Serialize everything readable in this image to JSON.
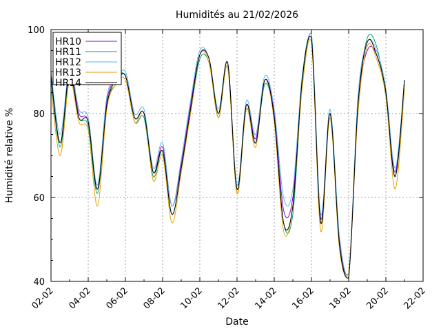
{
  "chart_data": {
    "type": "line",
    "title": "Humidités au 21/02/2026",
    "xlabel": "Date",
    "ylabel": "Humidité relative %",
    "xlim": [
      "2026-02-02",
      "2026-02-22"
    ],
    "ylim": [
      40,
      100
    ],
    "x_ticks": [
      "02-02",
      "04-02",
      "06-02",
      "08-02",
      "10-02",
      "12-02",
      "14-02",
      "16-02",
      "18-02",
      "20-02",
      "22-02"
    ],
    "y_ticks": [
      40,
      60,
      80,
      100
    ],
    "grid": true,
    "legend_position": "top-left",
    "x": [
      "2026-02-02 00:00",
      "2026-02-02 12:00",
      "2026-02-03 00:00",
      "2026-02-03 12:00",
      "2026-02-04 00:00",
      "2026-02-04 12:00",
      "2026-02-05 00:00",
      "2026-02-05 12:00",
      "2026-02-06 00:00",
      "2026-02-06 12:00",
      "2026-02-07 00:00",
      "2026-02-07 12:00",
      "2026-02-08 00:00",
      "2026-02-08 12:00",
      "2026-02-09 00:00",
      "2026-02-09 12:00",
      "2026-02-10 00:00",
      "2026-02-10 12:00",
      "2026-02-11 00:00",
      "2026-02-11 12:00",
      "2026-02-12 00:00",
      "2026-02-12 12:00",
      "2026-02-13 00:00",
      "2026-02-13 12:00",
      "2026-02-14 00:00",
      "2026-02-14 12:00",
      "2026-02-15 00:00",
      "2026-02-15 12:00",
      "2026-02-16 00:00",
      "2026-02-16 12:00",
      "2026-02-17 00:00",
      "2026-02-17 12:00",
      "2026-02-18 00:00",
      "2026-02-18 12:00",
      "2026-02-19 00:00",
      "2026-02-19 12:00",
      "2026-02-20 00:00",
      "2026-02-20 12:00",
      "2026-02-21 00:00"
    ],
    "series": [
      {
        "name": "HR10",
        "color": "#9400d3",
        "values": [
          89,
          73,
          90,
          80,
          78,
          62,
          83,
          88,
          89,
          79,
          80,
          66,
          72,
          58,
          68,
          82,
          94,
          93,
          80,
          92,
          62,
          82,
          74,
          88,
          80,
          57,
          60,
          88,
          98,
          55,
          80,
          50,
          42,
          82,
          95,
          94,
          85,
          66,
          88
        ]
      },
      {
        "name": "HR11",
        "color": "#009e73",
        "values": [
          88,
          72,
          89,
          79,
          77,
          61,
          82,
          87,
          89,
          78,
          79,
          65,
          71,
          56,
          67,
          80,
          93,
          92,
          79,
          91,
          61,
          81,
          73,
          87,
          79,
          54,
          56,
          87,
          99,
          54,
          79,
          49,
          41,
          82,
          98,
          96,
          84,
          65,
          87
        ]
      },
      {
        "name": "HR12",
        "color": "#56b4e9",
        "values": [
          90,
          75,
          91,
          81,
          79,
          63,
          84,
          88,
          90,
          80,
          81,
          67,
          73,
          58,
          69,
          83,
          95,
          93,
          81,
          92,
          63,
          83,
          75,
          89,
          81,
          60,
          62,
          89,
          99,
          56,
          81,
          51,
          42,
          84,
          97,
          95,
          86,
          67,
          88
        ]
      },
      {
        "name": "HR13",
        "color": "#e69f00",
        "values": [
          86,
          70,
          88,
          78,
          76,
          58,
          81,
          87,
          88,
          78,
          80,
          64,
          70,
          54,
          66,
          80,
          94,
          92,
          79,
          91,
          61,
          81,
          72,
          88,
          78,
          52,
          58,
          86,
          97,
          52,
          79,
          48,
          42,
          80,
          96,
          93,
          84,
          62,
          86
        ]
      },
      {
        "name": "HR14",
        "color": "#000000",
        "values": [
          89,
          73,
          90,
          79,
          78,
          62,
          82,
          88,
          89,
          79,
          80,
          66,
          71,
          56,
          67,
          81,
          94,
          93,
          80,
          92,
          62,
          82,
          73,
          88,
          79,
          54,
          58,
          88,
          98,
          54,
          80,
          49,
          41,
          82,
          97,
          94,
          85,
          65,
          88
        ]
      }
    ]
  }
}
